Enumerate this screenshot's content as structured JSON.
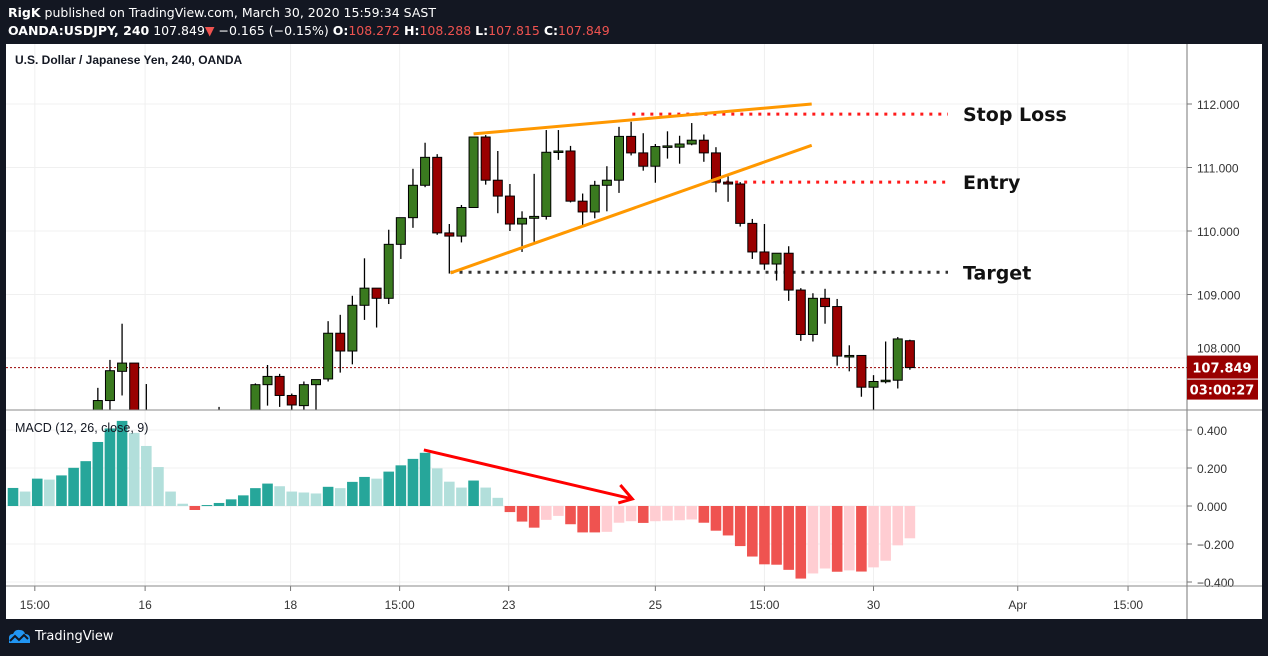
{
  "header": {
    "author": "RigK",
    "published": "published on TradingView.com, March 30, 2020 15:59:34 SAST",
    "symbol": "OANDA:USDJPY, 240",
    "last": "107.849",
    "direction_icon": "triangle-down",
    "change": "−0.165 (−0.15%)",
    "o_label": "O:",
    "o": "108.272",
    "h_label": "H:",
    "h": "108.288",
    "l_label": "L:",
    "l": "107.815",
    "c_label": "C:",
    "c": "107.849"
  },
  "pane_title": "U.S. Dollar / Japanese Yen, 240, OANDA",
  "macd_title": "MACD (12, 26, close, 9)",
  "brand": "TradingView",
  "colors": {
    "up": "#3a7a1f",
    "down": "#990000",
    "macd_up_strong": "#26a69a",
    "macd_up_weak": "#b2dfdb",
    "macd_down_strong": "#ef5350",
    "macd_down_weak": "#ffcdd2",
    "trendline": "#ff9800",
    "level_red": "#ff1a1a",
    "level_target": "#333333",
    "price_label": "#990000",
    "arrow": "#ff0000"
  },
  "chart_data": [
    {
      "type": "candlestick",
      "title": "U.S. Dollar / Japanese Yen, 240, OANDA",
      "ylim": [
        107.18,
        112.95
      ],
      "y_ticks": [
        "112.000",
        "111.000",
        "110.000",
        "109.000",
        "108.000"
      ],
      "y_tick_values": [
        112,
        111,
        110,
        109,
        108
      ],
      "x_ticks": [
        {
          "label": "15:00",
          "bar": 1.8
        },
        {
          "label": "16",
          "bar": 10.9
        },
        {
          "label": "18",
          "bar": 22.9
        },
        {
          "label": "15:00",
          "bar": 31.9
        },
        {
          "label": "23",
          "bar": 40.9
        },
        {
          "label": "25",
          "bar": 53
        },
        {
          "label": "15:00",
          "bar": 62
        },
        {
          "label": "30",
          "bar": 71
        },
        {
          "label": "Apr",
          "bar": 82.9
        },
        {
          "label": "15:00",
          "bar": 92
        }
      ],
      "grid": true,
      "current_price": {
        "value": 107.849,
        "label": "107.849",
        "countdown": "03:00:27"
      },
      "candles_ohlc": [
        [
          7,
          107.05,
          107.53,
          106.9,
          107.33
        ],
        [
          8,
          107.33,
          107.97,
          107.0,
          107.8
        ],
        [
          9,
          107.79,
          108.54,
          107.41,
          107.92
        ],
        [
          10,
          107.92,
          107.92,
          106.8,
          106.9
        ],
        [
          11,
          106.95,
          107.59,
          106.7,
          107.1
        ],
        [
          17,
          107.0,
          107.23,
          106.8,
          107.1
        ],
        [
          20,
          107.0,
          107.6,
          106.9,
          107.58
        ],
        [
          21,
          107.58,
          107.89,
          107.25,
          107.71
        ],
        [
          22,
          107.71,
          107.75,
          107.23,
          107.41
        ],
        [
          23,
          107.41,
          107.44,
          107.1,
          107.26
        ],
        [
          24,
          107.25,
          107.63,
          107.1,
          107.58
        ],
        [
          25,
          107.58,
          107.66,
          107.0,
          107.66
        ],
        [
          26,
          107.67,
          108.58,
          107.63,
          108.39
        ],
        [
          27,
          108.39,
          108.68,
          107.77,
          108.11
        ],
        [
          28,
          108.11,
          108.98,
          107.9,
          108.83
        ],
        [
          29,
          108.83,
          109.57,
          108.6,
          109.1
        ],
        [
          30,
          109.1,
          109.1,
          108.48,
          108.94
        ],
        [
          31,
          108.94,
          110.02,
          108.85,
          109.79
        ],
        [
          32,
          109.79,
          110.21,
          109.56,
          110.21
        ],
        [
          33,
          110.21,
          110.98,
          110.05,
          110.72
        ],
        [
          34,
          110.72,
          111.39,
          110.69,
          111.16
        ],
        [
          35,
          111.16,
          111.21,
          109.94,
          109.97
        ],
        [
          36,
          109.97,
          110.11,
          109.33,
          109.92
        ],
        [
          37,
          109.92,
          110.41,
          109.82,
          110.37
        ],
        [
          38,
          110.37,
          111.48,
          110.37,
          111.48
        ],
        [
          39,
          111.48,
          111.51,
          110.73,
          110.8
        ],
        [
          40,
          110.8,
          111.26,
          110.28,
          110.55
        ],
        [
          41,
          110.55,
          110.74,
          110.0,
          110.11
        ],
        [
          42,
          110.11,
          110.31,
          109.67,
          110.2
        ],
        [
          43,
          110.2,
          110.9,
          109.83,
          110.23
        ],
        [
          44,
          110.23,
          111.59,
          110.18,
          111.24
        ],
        [
          45,
          111.24,
          111.59,
          111.12,
          111.26
        ],
        [
          46,
          111.26,
          111.34,
          110.45,
          110.47
        ],
        [
          47,
          110.47,
          110.59,
          110.09,
          110.3
        ],
        [
          48,
          110.3,
          110.79,
          110.2,
          110.72
        ],
        [
          49,
          110.72,
          111.02,
          110.31,
          110.8
        ],
        [
          50,
          110.8,
          111.64,
          110.6,
          111.49
        ],
        [
          51,
          111.49,
          111.72,
          111.19,
          111.23
        ],
        [
          52,
          111.23,
          111.54,
          110.95,
          111.02
        ],
        [
          53,
          111.02,
          111.37,
          110.76,
          111.33
        ],
        [
          54,
          111.33,
          111.57,
          111.14,
          111.34
        ],
        [
          55,
          111.32,
          111.5,
          111.06,
          111.37
        ],
        [
          56,
          111.37,
          111.7,
          111.35,
          111.43
        ],
        [
          57,
          111.43,
          111.52,
          111.09,
          111.23
        ],
        [
          58,
          111.23,
          111.32,
          110.61,
          110.77
        ],
        [
          59,
          110.77,
          110.86,
          110.46,
          110.74
        ],
        [
          60,
          110.74,
          110.77,
          110.07,
          110.12
        ],
        [
          61,
          110.12,
          110.19,
          109.56,
          109.67
        ],
        [
          62,
          109.67,
          110.11,
          109.39,
          109.48
        ],
        [
          63,
          109.48,
          109.65,
          109.22,
          109.65
        ],
        [
          64,
          109.65,
          109.76,
          108.9,
          109.07
        ],
        [
          65,
          109.07,
          109.1,
          108.27,
          108.37
        ],
        [
          66,
          108.37,
          109.02,
          108.26,
          108.94
        ],
        [
          67,
          108.94,
          109.09,
          108.54,
          108.81
        ],
        [
          68,
          108.81,
          108.93,
          107.88,
          108.03
        ],
        [
          69,
          108.04,
          108.2,
          107.79,
          108.04
        ],
        [
          70,
          108.04,
          108.04,
          107.39,
          107.54
        ],
        [
          71,
          107.54,
          107.73,
          107.1,
          107.63
        ],
        [
          72,
          107.63,
          108.26,
          107.6,
          107.65
        ],
        [
          73,
          107.65,
          108.33,
          107.52,
          108.3
        ],
        [
          74,
          108.272,
          108.288,
          107.815,
          107.849
        ]
      ],
      "annotations": {
        "trendlines": [
          {
            "name": "upper",
            "from": [
              38.0,
              111.53
            ],
            "to": [
              65.9,
              112.0
            ]
          },
          {
            "name": "lower",
            "from": [
              36.1,
              109.34
            ],
            "to": [
              65.9,
              111.35
            ]
          }
        ],
        "levels": [
          {
            "label": "Stop Loss",
            "price": 111.84,
            "from_bar": 51.1,
            "style": "red"
          },
          {
            "label": "Entry",
            "price": 110.77,
            "from_bar": 58.1,
            "style": "red"
          },
          {
            "label": "Target",
            "price": 109.35,
            "from_bar": 36.1,
            "style": "target"
          }
        ]
      }
    },
    {
      "type": "bar",
      "title": "MACD (12, 26, close, 9)",
      "ylim": [
        -0.4,
        0.45
      ],
      "y_ticks": [
        "0.400",
        "0.200",
        "0.000",
        "−0.200",
        "−0.400"
      ],
      "y_tick_values": [
        0.4,
        0.2,
        0,
        -0.2,
        -0.4
      ],
      "histogram": [
        0.095,
        0.076,
        0.144,
        0.139,
        0.161,
        0.201,
        0.236,
        0.337,
        0.408,
        0.448,
        0.385,
        0.316,
        0.205,
        0.076,
        0.012,
        -0.021,
        0.005,
        0.016,
        0.035,
        0.056,
        0.094,
        0.118,
        0.104,
        0.076,
        0.071,
        0.066,
        0.101,
        0.094,
        0.127,
        0.153,
        0.144,
        0.181,
        0.214,
        0.248,
        0.28,
        0.198,
        0.128,
        0.097,
        0.134,
        0.097,
        0.043,
        -0.032,
        -0.082,
        -0.114,
        -0.073,
        -0.052,
        -0.096,
        -0.139,
        -0.139,
        -0.136,
        -0.088,
        -0.08,
        -0.089,
        -0.08,
        -0.077,
        -0.075,
        -0.071,
        -0.088,
        -0.13,
        -0.155,
        -0.211,
        -0.266,
        -0.307,
        -0.309,
        -0.336,
        -0.382,
        -0.355,
        -0.329,
        -0.346,
        -0.339,
        -0.345,
        -0.323,
        -0.288,
        -0.207,
        -0.17
      ],
      "arrow": {
        "from": [
          33.9,
          0.295
        ],
        "to": [
          51.1,
          0.037
        ]
      }
    }
  ]
}
